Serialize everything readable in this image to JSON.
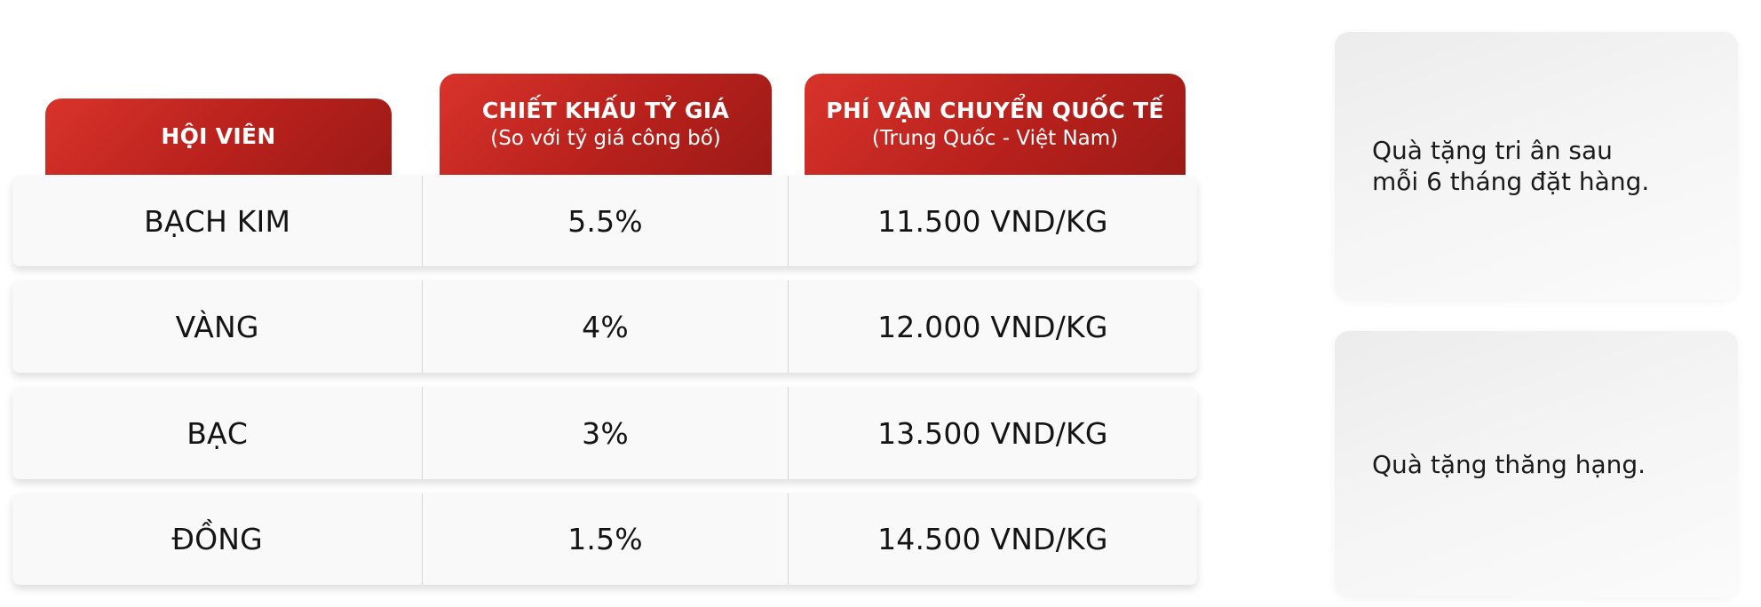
{
  "headers": {
    "member": {
      "title": "HỘI VIÊN"
    },
    "discount": {
      "title": "CHIẾT KHẤU TỶ GIÁ",
      "subtitle": "(So với tỷ giá công bố)"
    },
    "shipping": {
      "title": "PHÍ VẬN CHUYỂN QUỐC TẾ",
      "subtitle": "(Trung Quốc - Việt Nam)"
    }
  },
  "rows": [
    {
      "tier": "BẠCH KIM",
      "discount": "5.5%",
      "shipping": "11.500 VND/KG"
    },
    {
      "tier": "VÀNG",
      "discount": "4%",
      "shipping": "12.000 VND/KG"
    },
    {
      "tier": "BẠC",
      "discount": "3%",
      "shipping": "13.500 VND/KG"
    },
    {
      "tier": "ĐỒNG",
      "discount": "1.5%",
      "shipping": "14.500 VND/KG"
    }
  ],
  "gifts": [
    {
      "line1": "Quà tặng tri ân sau",
      "line2": "mỗi 6 tháng đặt hàng."
    },
    {
      "line1": "Quà tặng thăng hạng."
    }
  ],
  "colors": {
    "header_red": "#c4261f",
    "row_background": "#f9f9f9",
    "card_background": "#f2f2f2",
    "text": "#141414"
  }
}
